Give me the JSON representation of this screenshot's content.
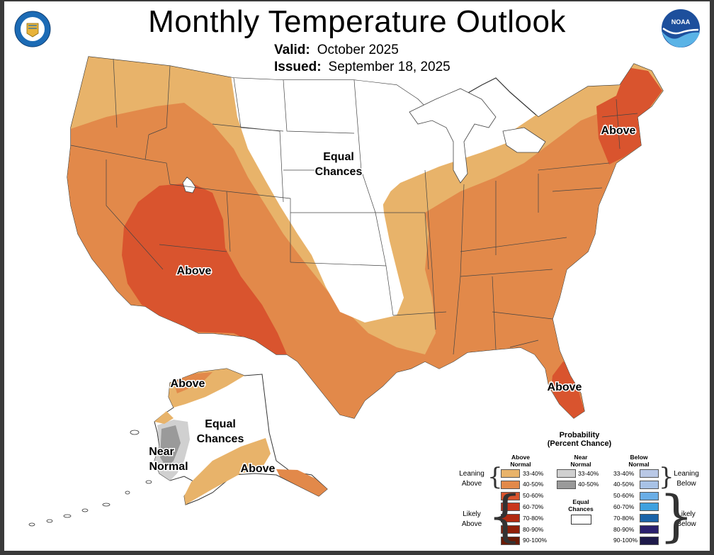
{
  "header": {
    "title": "Monthly Temperature Outlook",
    "valid_label": "Valid:",
    "valid_value": "October 2025",
    "issued_label": "Issued:",
    "issued_value": "September 18, 2025"
  },
  "logos": {
    "left": "commerce-seal-icon",
    "right": "noaa-logo-icon"
  },
  "map_labels": {
    "conus_west_above": "Above",
    "conus_center_ec": [
      "Equal",
      "Chances"
    ],
    "northeast_above": "Above",
    "florida_above": "Above",
    "alaska_north_above": "Above",
    "alaska_ec": [
      "Equal",
      "Chances"
    ],
    "alaska_near_normal": [
      "Near",
      "Normal"
    ],
    "alaska_south_above": "Above"
  },
  "colors": {
    "above_33_40": "#e8b36a",
    "above_40_50": "#e2894a",
    "above_50_60": "#d9542e",
    "above_60_70": "#c9361c",
    "above_70_80": "#b02a10",
    "above_80_90": "#902008",
    "above_90_100": "#6a1a04",
    "near_33_40": "#d0d0d0",
    "near_40_50": "#9a9a9a",
    "below_33_40": "#b9c8e6",
    "below_40_50": "#a8c2e6",
    "below_50_60": "#6aaee6",
    "below_60_70": "#3fa1df",
    "below_70_80": "#1b63a8",
    "below_80_90": "#2b206e",
    "below_90_100": "#1e1a4a",
    "equal_chances": "#ffffff"
  },
  "legend": {
    "title_line1": "Probability",
    "title_line2": "(Percent Chance)",
    "above_header": [
      "Above",
      "Normal"
    ],
    "near_header": [
      "Near",
      "Normal"
    ],
    "below_header": [
      "Below",
      "Normal"
    ],
    "above_rows": [
      "33-40%",
      "40-50%",
      "50-60%",
      "60-70%",
      "70-80%",
      "80-90%",
      "90-100%"
    ],
    "near_rows": [
      "33-40%",
      "40-50%"
    ],
    "below_rows": [
      "33-40%",
      "40-50%",
      "50-60%",
      "60-70%",
      "70-80%",
      "80-90%",
      "90-100%"
    ],
    "equal_chances_label": [
      "Equal",
      "Chances"
    ],
    "leaning_above": [
      "Leaning",
      "Above"
    ],
    "likely_above": [
      "Likely",
      "Above"
    ],
    "leaning_below": [
      "Leaning",
      "Below"
    ],
    "likely_below": [
      "Likely",
      "Below"
    ]
  }
}
